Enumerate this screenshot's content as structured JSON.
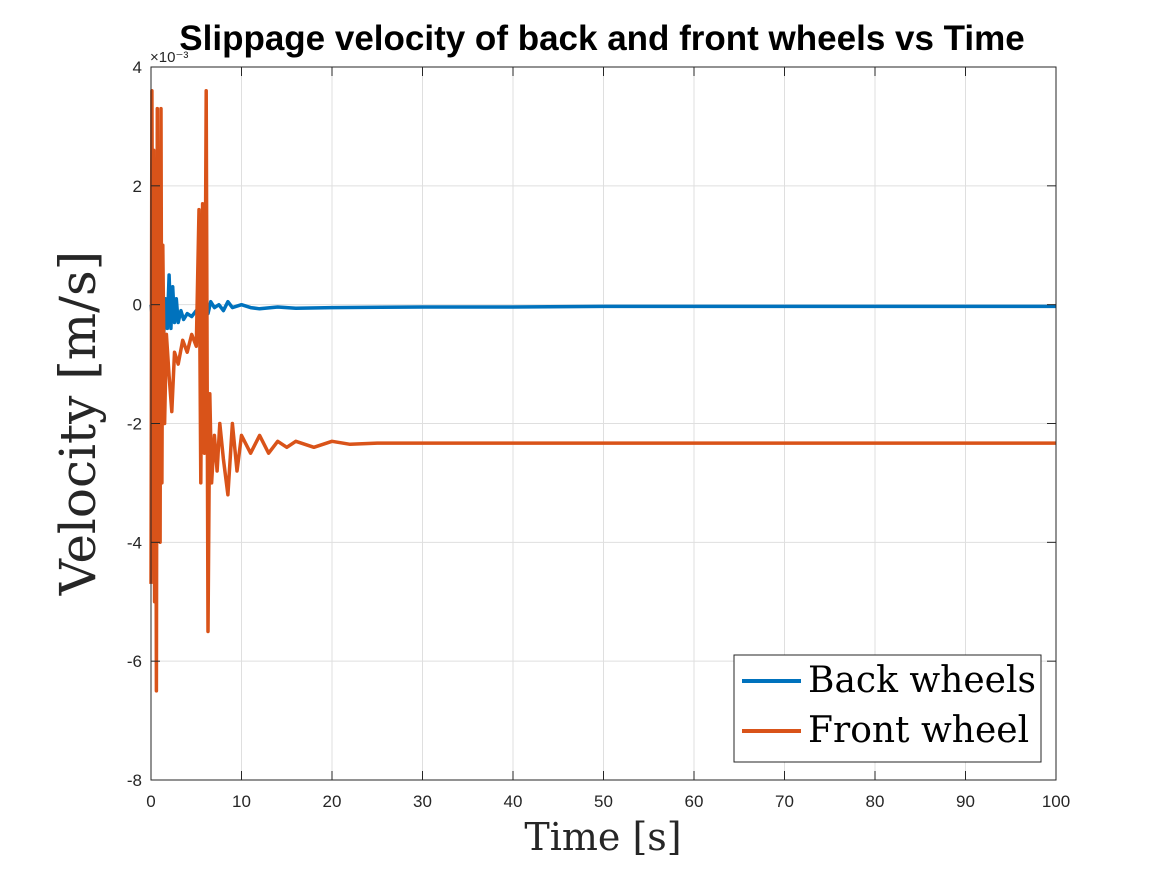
{
  "chart_data": {
    "type": "line",
    "title": "Slippage velocity of back and front wheels vs Time",
    "xlabel": "Time [s]",
    "ylabel": "Velocity [m/s]",
    "y_exponent_label": "×10⁻³",
    "xlim": [
      0,
      100
    ],
    "ylim": [
      -8,
      4
    ],
    "y_scale_factor": 0.001,
    "xticks": [
      0,
      10,
      20,
      30,
      40,
      50,
      60,
      70,
      80,
      90,
      100
    ],
    "yticks": [
      -8,
      -6,
      -4,
      -2,
      0,
      2,
      4
    ],
    "grid": true,
    "legend_position": "bottom-right",
    "series": [
      {
        "name": "Back wheels",
        "color": "#0072BD",
        "x": [
          0,
          0.2,
          0.4,
          0.6,
          0.8,
          1.0,
          1.2,
          1.4,
          1.6,
          1.8,
          2.0,
          2.2,
          2.4,
          2.6,
          2.8,
          3.0,
          3.3,
          3.6,
          4.0,
          4.5,
          5.0,
          5.5,
          6.0,
          6.3,
          6.6,
          7.0,
          7.5,
          8.0,
          8.5,
          9.0,
          10,
          11,
          12,
          14,
          16,
          20,
          30,
          40,
          50,
          60,
          70,
          80,
          90,
          100
        ],
        "y": [
          0,
          -0.3,
          0.2,
          -0.4,
          0.1,
          -0.3,
          0.4,
          -0.5,
          0.1,
          -0.4,
          0.5,
          -0.4,
          0.3,
          -0.3,
          0.1,
          -0.3,
          -0.1,
          -0.25,
          -0.15,
          -0.2,
          -0.1,
          -0.2,
          0.1,
          -0.15,
          0.05,
          -0.05,
          0.0,
          -0.1,
          0.05,
          -0.05,
          0.0,
          -0.05,
          -0.07,
          -0.04,
          -0.06,
          -0.05,
          -0.04,
          -0.04,
          -0.03,
          -0.03,
          -0.03,
          -0.03,
          -0.03,
          -0.03
        ]
      },
      {
        "name": "Front wheel",
        "color": "#D95319",
        "x": [
          0,
          0.1,
          0.2,
          0.3,
          0.4,
          0.5,
          0.6,
          0.7,
          0.8,
          0.9,
          1.0,
          1.1,
          1.2,
          1.3,
          1.5,
          1.7,
          2.0,
          2.3,
          2.6,
          3.0,
          3.5,
          4.0,
          4.5,
          5.0,
          5.3,
          5.5,
          5.7,
          5.9,
          6.1,
          6.3,
          6.5,
          6.7,
          7.0,
          7.3,
          7.6,
          8.0,
          8.5,
          9.0,
          9.5,
          10,
          11,
          12,
          13,
          14,
          15,
          16,
          18,
          20,
          22,
          25,
          30,
          40,
          50,
          60,
          70,
          80,
          90,
          100
        ],
        "y": [
          -4.7,
          3.6,
          -1.0,
          2.6,
          -5.0,
          1.5,
          -6.5,
          3.3,
          -2.5,
          2.0,
          -4.0,
          3.3,
          -3.0,
          1.0,
          -2.0,
          -0.5,
          -1.2,
          -1.8,
          -0.8,
          -1.0,
          -0.6,
          -0.8,
          -0.5,
          -0.7,
          1.6,
          -3.0,
          1.7,
          -2.5,
          3.6,
          -5.5,
          -1.5,
          -3.0,
          -2.2,
          -2.8,
          -2.0,
          -2.6,
          -3.2,
          -2.0,
          -2.8,
          -2.2,
          -2.5,
          -2.2,
          -2.5,
          -2.3,
          -2.4,
          -2.3,
          -2.4,
          -2.3,
          -2.35,
          -2.33,
          -2.33,
          -2.33,
          -2.33,
          -2.33,
          -2.33,
          -2.33,
          -2.33,
          -2.33
        ]
      }
    ]
  }
}
